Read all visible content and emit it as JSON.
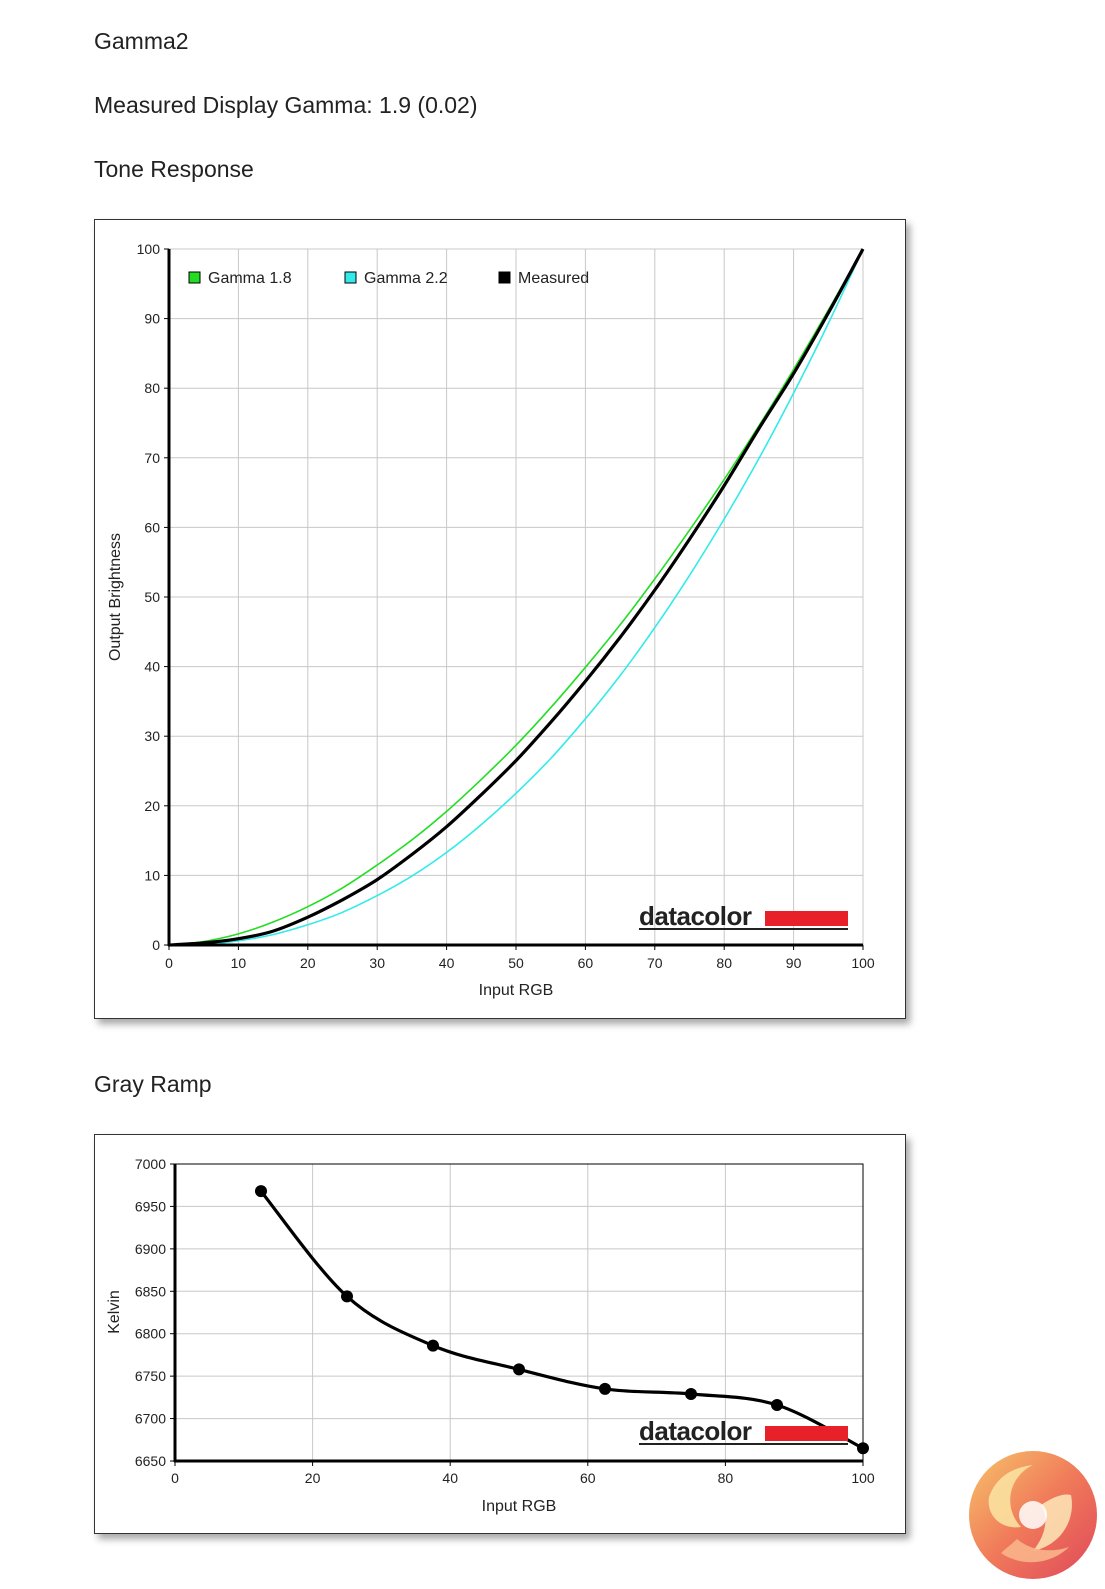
{
  "header": {
    "profile_name": "Gamma2",
    "measured_gamma": "Measured Display Gamma: 1.9 (0.02)",
    "tone_title": "Tone Response",
    "gray_title": "Gray Ramp"
  },
  "watermark": "datacolor",
  "colors": {
    "gamma18": "#22dd22",
    "gamma22": "#33eaea",
    "measured": "#000000",
    "brand_red": "#e8202a",
    "grid": "#c8c8c8"
  },
  "chart_data": [
    {
      "type": "line",
      "title": "Tone Response",
      "xlabel": "Input RGB",
      "ylabel": "Output Brightness",
      "xlim": [
        0,
        100
      ],
      "ylim": [
        0,
        100
      ],
      "xticks": [
        0,
        10,
        20,
        30,
        40,
        50,
        60,
        70,
        80,
        90,
        100
      ],
      "yticks": [
        0,
        10,
        20,
        30,
        40,
        50,
        60,
        70,
        80,
        90,
        100
      ],
      "grid": true,
      "legend_position": "top-left",
      "x": [
        0,
        5,
        10,
        15,
        20,
        25,
        30,
        35,
        40,
        45,
        50,
        55,
        60,
        65,
        70,
        75,
        80,
        85,
        90,
        95,
        100
      ],
      "series": [
        {
          "name": "Gamma 1.8",
          "color": "#22dd22",
          "values": [
            0,
            0.5,
            1.6,
            3.3,
            5.5,
            8.2,
            11.5,
            15.1,
            19.2,
            23.8,
            28.7,
            34.1,
            39.9,
            46.0,
            52.6,
            59.6,
            66.9,
            74.6,
            82.7,
            91.2,
            100
          ]
        },
        {
          "name": "Gamma 2.2",
          "color": "#33eaea",
          "values": [
            0,
            0.1,
            0.6,
            1.5,
            2.9,
            4.7,
            7.1,
            9.9,
            13.3,
            17.3,
            21.8,
            26.8,
            32.5,
            38.7,
            45.6,
            53.1,
            61.2,
            69.9,
            79.3,
            89.3,
            100
          ]
        },
        {
          "name": "Measured",
          "color": "#000000",
          "values": [
            0,
            0.3,
            0.9,
            2.0,
            4.0,
            6.5,
            9.4,
            13.0,
            17.0,
            21.6,
            26.5,
            32.0,
            37.9,
            44.2,
            51.0,
            58.3,
            66.0,
            74.2,
            82.1,
            90.8,
            100
          ]
        }
      ]
    },
    {
      "type": "line",
      "title": "Gray Ramp",
      "xlabel": "Input RGB",
      "ylabel": "Kelvin",
      "xlim": [
        0,
        100
      ],
      "ylim": [
        6650,
        7000
      ],
      "xticks": [
        0,
        20,
        40,
        60,
        80,
        100
      ],
      "yticks": [
        6650,
        6700,
        6750,
        6800,
        6850,
        6900,
        6950,
        7000
      ],
      "grid": true,
      "x": [
        12.5,
        25,
        37.5,
        50,
        62.5,
        75,
        87.5,
        100
      ],
      "series": [
        {
          "values": [
            6968,
            6844,
            6786,
            6758,
            6735,
            6729,
            6716,
            6665
          ]
        }
      ]
    }
  ]
}
